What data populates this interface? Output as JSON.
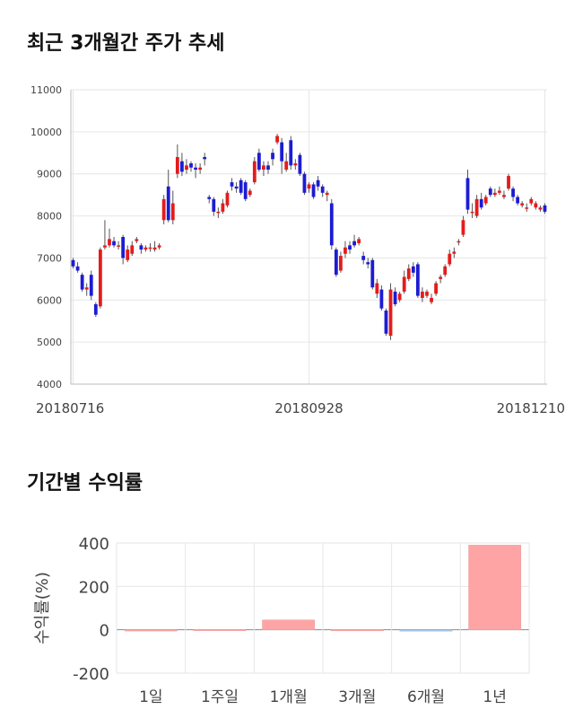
{
  "sections": {
    "price_title": "최근 3개월간 주가 추세",
    "return_title": "기간별 수익률"
  },
  "chart_data": [
    {
      "type": "candlestick",
      "title": "최근 3개월간 주가 추세",
      "ylim": [
        4000,
        11000
      ],
      "y_ticks": [
        "4000",
        "5000",
        "6000",
        "7000",
        "8000",
        "9000",
        "10000",
        "11000"
      ],
      "x_tick_labels": [
        "20180716",
        "20180928",
        "20181210"
      ],
      "x_tick_index": [
        0,
        52,
        104
      ],
      "grid": true,
      "colors": {
        "up": "#e31c1c",
        "down": "#1c1cd4",
        "wick": "#555555"
      },
      "series": [
        {
          "name": "",
          "candles": [
            [
              6950,
              6800,
              7000,
              6750
            ],
            [
              6800,
              6700,
              6900,
              6650
            ],
            [
              6600,
              6250,
              6650,
              6200
            ],
            [
              6250,
              6300,
              6400,
              6100
            ],
            [
              6600,
              6100,
              6700,
              6000
            ],
            [
              5900,
              5650,
              5950,
              5600
            ],
            [
              5850,
              7200,
              7250,
              5800
            ],
            [
              7250,
              7300,
              7900,
              7200
            ],
            [
              7300,
              7450,
              7700,
              7250
            ],
            [
              7400,
              7300,
              7500,
              7250
            ],
            [
              7300,
              7300,
              7400,
              7200
            ],
            [
              7500,
              7000,
              7550,
              6850
            ],
            [
              6950,
              7200,
              7300,
              6900
            ],
            [
              7100,
              7300,
              7400,
              7050
            ],
            [
              7400,
              7450,
              7500,
              7350
            ],
            [
              7300,
              7200,
              7350,
              7100
            ],
            [
              7200,
              7250,
              7300,
              7150
            ],
            [
              7250,
              7250,
              7350,
              7150
            ],
            [
              7200,
              7250,
              7400,
              7150
            ],
            [
              7250,
              7300,
              7350,
              7200
            ],
            [
              7900,
              8400,
              8500,
              7800
            ],
            [
              8700,
              7900,
              9100,
              7850
            ],
            [
              7900,
              8300,
              8600,
              7800
            ],
            [
              9000,
              9400,
              9700,
              8900
            ],
            [
              9300,
              9050,
              9500,
              8950
            ],
            [
              9100,
              9200,
              9350,
              9000
            ],
            [
              9250,
              9150,
              9300,
              9050
            ],
            [
              9150,
              9100,
              9250,
              8900
            ],
            [
              9100,
              9150,
              9250,
              9000
            ],
            [
              9400,
              9350,
              9500,
              9200
            ],
            [
              8450,
              8400,
              8500,
              8300
            ],
            [
              8400,
              8100,
              8450,
              8000
            ],
            [
              8100,
              8100,
              8200,
              7950
            ],
            [
              8100,
              8300,
              8400,
              8050
            ],
            [
              8250,
              8550,
              8600,
              8200
            ],
            [
              8800,
              8700,
              8900,
              8600
            ],
            [
              8700,
              8650,
              8800,
              8550
            ],
            [
              8850,
              8550,
              8900,
              8500
            ],
            [
              8800,
              8400,
              8850,
              8350
            ],
            [
              8500,
              8600,
              8650,
              8450
            ],
            [
              8800,
              9300,
              9400,
              8750
            ],
            [
              9500,
              9100,
              9600,
              9050
            ],
            [
              9100,
              9200,
              9300,
              8950
            ],
            [
              9200,
              9100,
              9300,
              9000
            ],
            [
              9500,
              9350,
              9600,
              9200
            ],
            [
              9750,
              9900,
              9950,
              9700
            ],
            [
              9750,
              9300,
              9850,
              9000
            ],
            [
              9100,
              9300,
              9500,
              9050
            ],
            [
              9800,
              9200,
              9900,
              9100
            ],
            [
              9200,
              9250,
              9350,
              9100
            ],
            [
              9450,
              9000,
              9500,
              8950
            ],
            [
              9000,
              8550,
              9050,
              8500
            ],
            [
              8650,
              8750,
              8800,
              8550
            ],
            [
              8750,
              8450,
              8800,
              8400
            ],
            [
              8850,
              8700,
              8950,
              8600
            ],
            [
              8700,
              8550,
              8750,
              8450
            ],
            [
              8500,
              8550,
              8600,
              8350
            ],
            [
              8300,
              7300,
              8400,
              7200
            ],
            [
              7200,
              6600,
              7250,
              6550
            ],
            [
              6700,
              7050,
              7150,
              6650
            ],
            [
              7100,
              7250,
              7400,
              7000
            ],
            [
              7300,
              7200,
              7400,
              7100
            ],
            [
              7400,
              7300,
              7550,
              7250
            ],
            [
              7350,
              7450,
              7500,
              7300
            ],
            [
              7050,
              6950,
              7150,
              6850
            ],
            [
              6900,
              6850,
              7000,
              6750
            ],
            [
              6950,
              6300,
              7000,
              6250
            ],
            [
              6150,
              6400,
              6500,
              6050
            ],
            [
              6250,
              5800,
              6350,
              5750
            ],
            [
              5750,
              5200,
              5800,
              5150
            ],
            [
              5150,
              6250,
              6400,
              5050
            ],
            [
              6200,
              5900,
              6300,
              5850
            ],
            [
              6000,
              6150,
              6200,
              5950
            ],
            [
              6200,
              6550,
              6700,
              6150
            ],
            [
              6500,
              6750,
              6850,
              6450
            ],
            [
              6800,
              6650,
              6900,
              6550
            ],
            [
              6850,
              6100,
              6900,
              6050
            ],
            [
              6050,
              6200,
              6300,
              5950
            ],
            [
              6100,
              6200,
              6250,
              6050
            ],
            [
              5950,
              6050,
              6150,
              5900
            ],
            [
              6150,
              6400,
              6450,
              6100
            ],
            [
              6500,
              6550,
              6600,
              6400
            ],
            [
              6600,
              6800,
              6850,
              6550
            ],
            [
              6850,
              7100,
              7200,
              6800
            ],
            [
              7100,
              7150,
              7250,
              7000
            ],
            [
              7400,
              7400,
              7450,
              7300
            ],
            [
              7550,
              7900,
              8000,
              7500
            ],
            [
              8900,
              8150,
              9100,
              8050
            ],
            [
              8100,
              8100,
              8300,
              7950
            ],
            [
              8000,
              8400,
              8500,
              7950
            ],
            [
              8400,
              8200,
              8550,
              8150
            ],
            [
              8300,
              8450,
              8500,
              8250
            ],
            [
              8650,
              8500,
              8700,
              8450
            ],
            [
              8500,
              8550,
              8650,
              8450
            ],
            [
              8550,
              8600,
              8700,
              8500
            ],
            [
              8450,
              8500,
              8600,
              8400
            ],
            [
              8650,
              8950,
              9000,
              8600
            ],
            [
              8650,
              8450,
              8700,
              8350
            ],
            [
              8450,
              8300,
              8500,
              8250
            ],
            [
              8250,
              8300,
              8350,
              8200
            ],
            [
              8200,
              8200,
              8300,
              8100
            ],
            [
              8300,
              8400,
              8450,
              8250
            ],
            [
              8200,
              8300,
              8350,
              8150
            ],
            [
              8150,
              8200,
              8250,
              8100
            ],
            [
              8250,
              8100,
              8300,
              8050
            ]
          ]
        }
      ]
    },
    {
      "type": "bar",
      "title": "기간별 수익률",
      "categories": [
        "1일",
        "1주일",
        "1개월",
        "3개월",
        "6개월",
        "1년"
      ],
      "values": [
        0.5,
        2,
        45,
        1.5,
        -1.5,
        390
      ],
      "ylabel": "수익률(%)",
      "ylim": [
        -200,
        400
      ],
      "y_ticks": [
        "-200",
        "0",
        "200",
        "400"
      ],
      "colors": {
        "positive": "#ffa4a4",
        "negative": "#a4c8ec"
      },
      "grid": true
    }
  ]
}
